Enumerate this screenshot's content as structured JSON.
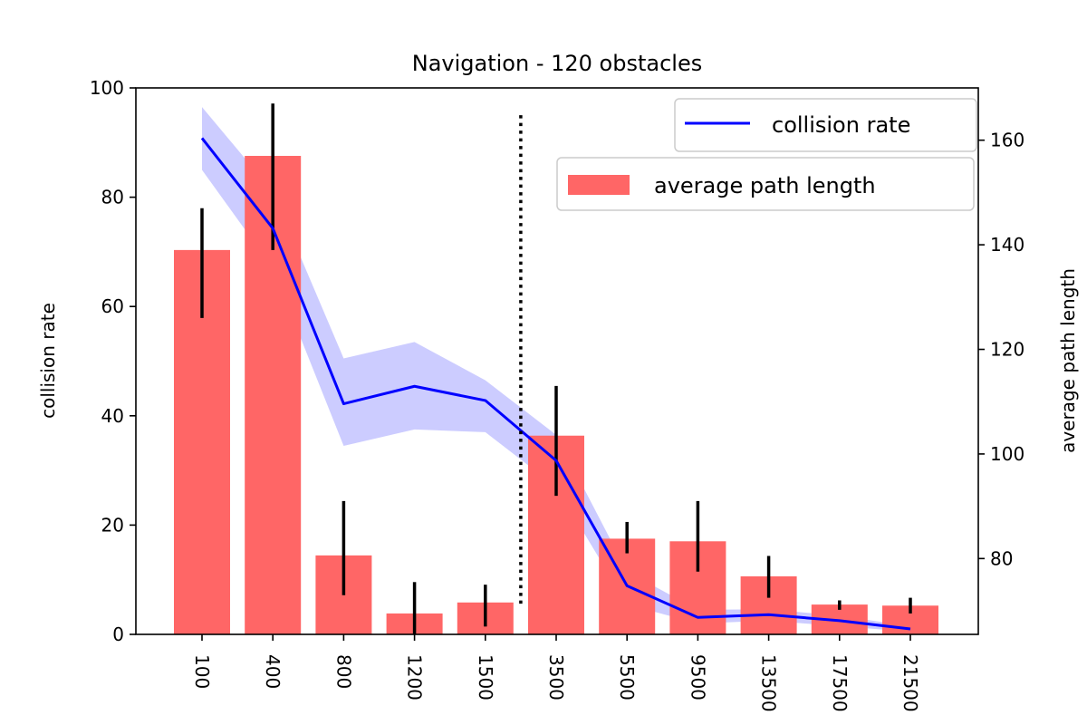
{
  "chart_data": {
    "type": "bar",
    "title": "Navigation - 120 obstacles",
    "categories": [
      "100",
      "400",
      "800",
      "1200",
      "1500",
      "3500",
      "5500",
      "9500",
      "13500",
      "17500",
      "21500"
    ],
    "left_axis": {
      "label": "collision rate",
      "ylim": [
        0,
        100
      ],
      "ticks": [
        0,
        20,
        40,
        60,
        80,
        100
      ]
    },
    "right_axis": {
      "label": "average path length",
      "ylim": [
        65.5,
        170
      ],
      "ticks": [
        80,
        100,
        120,
        140,
        160
      ]
    },
    "series": [
      {
        "name": "average path length",
        "kind": "bar",
        "axis": "right",
        "color": "#ff6666",
        "values": [
          139,
          157,
          80.6,
          69.5,
          71.6,
          103.5,
          83.8,
          83.3,
          76.6,
          71.2,
          71
        ],
        "err_low": [
          126,
          139,
          73,
          65.5,
          67,
          92,
          81,
          77.5,
          72.5,
          70.2,
          69.5
        ],
        "err_high": [
          147,
          167,
          91,
          75.5,
          75,
          113,
          87,
          91,
          80.5,
          72,
          72.5
        ]
      },
      {
        "name": "collision rate",
        "kind": "line",
        "axis": "left",
        "color": "#0000ff",
        "band_color": "#9999ff",
        "values": [
          90.8,
          74.3,
          42.2,
          45.4,
          42.8,
          31.8,
          8.9,
          3.1,
          3.6,
          2.5,
          1
        ],
        "band_low": [
          85,
          67,
          34.5,
          37.5,
          37,
          27,
          5.5,
          2,
          2.5,
          1.5,
          0.5
        ],
        "band_high": [
          96.5,
          81,
          50.5,
          53.5,
          46.5,
          36.5,
          11.5,
          4.5,
          4.6,
          3.4,
          1.5
        ]
      }
    ],
    "vline": {
      "after_category": "1500",
      "top": 95,
      "style": "dotted"
    },
    "legend": {
      "position": "top-right"
    },
    "grid": false
  }
}
